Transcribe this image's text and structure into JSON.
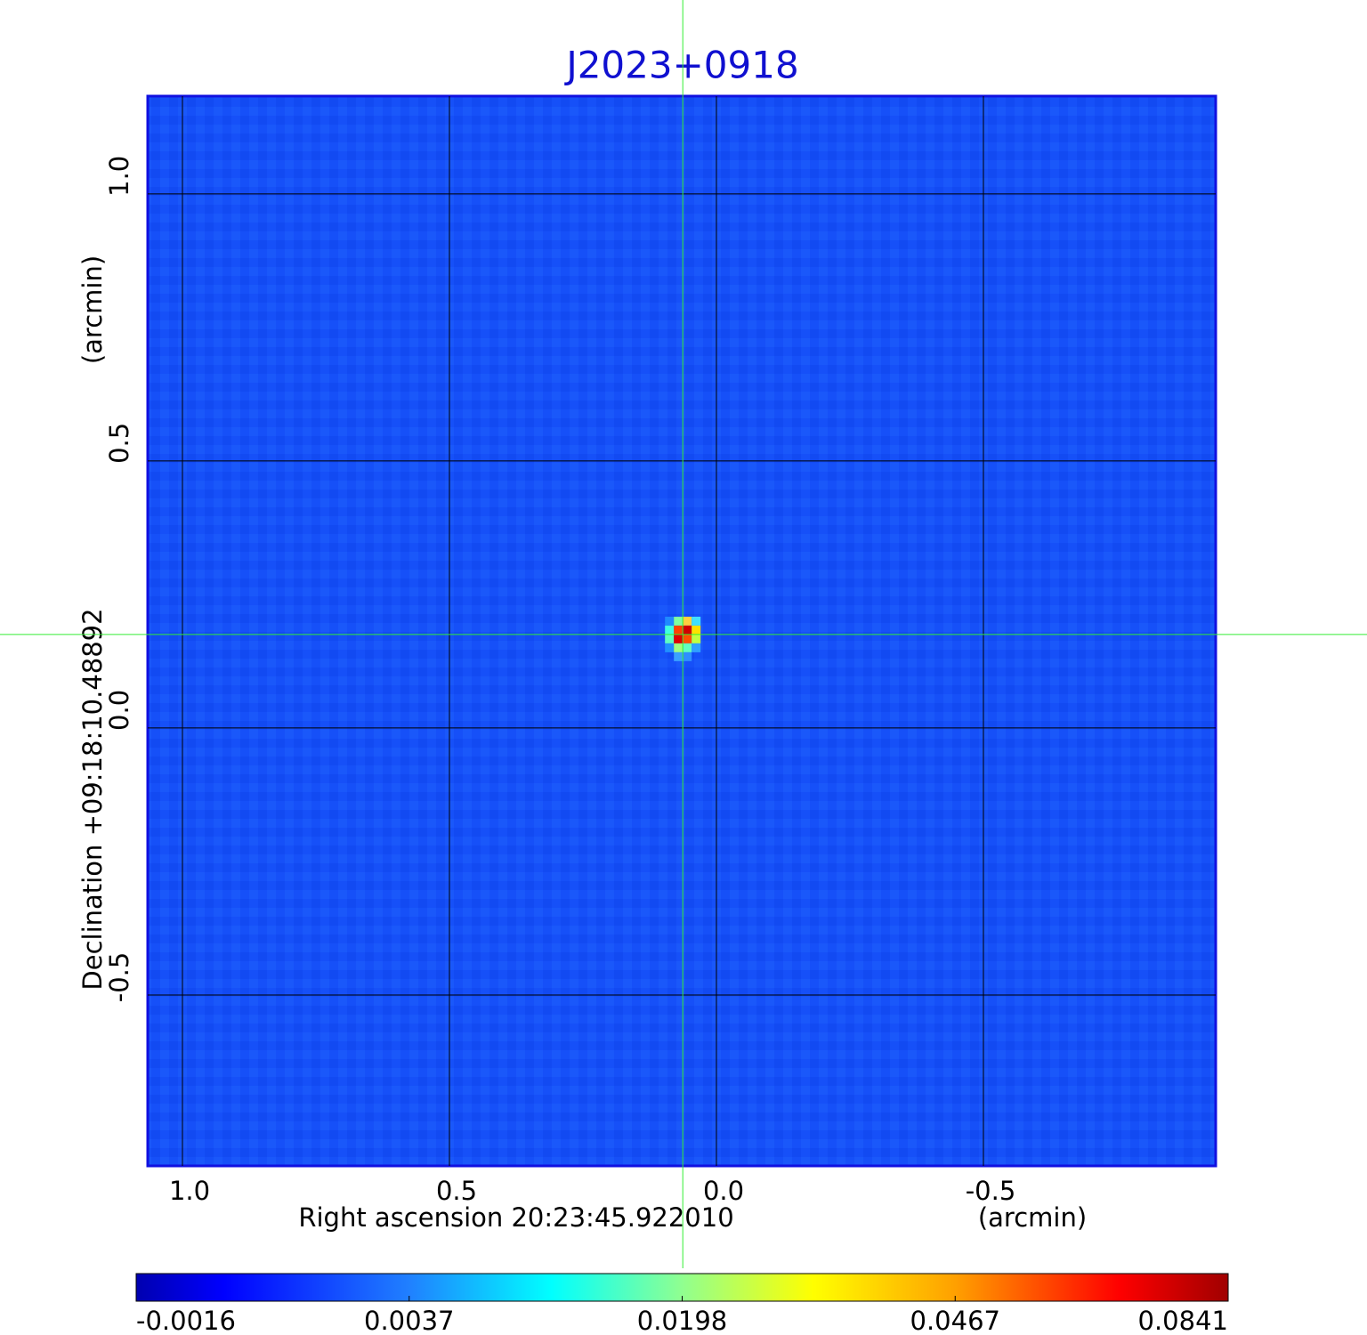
{
  "chart_data": {
    "type": "image",
    "title": "J2023+0918",
    "xlabel": "Right ascension  20:23:45.922010",
    "xunit": "(arcmin)",
    "ylabel": "Declination  +09:18:10.48892",
    "yunit": "(arcmin)",
    "xlim": [
      1.065,
      -0.935
    ],
    "ylim": [
      -0.82,
      1.183
    ],
    "xticks": [
      {
        "value": 1.0,
        "label": "1.0"
      },
      {
        "value": 0.5,
        "label": "0.5"
      },
      {
        "value": 0.0,
        "label": "0.0"
      },
      {
        "value": -0.5,
        "label": "-0.5"
      }
    ],
    "yticks": [
      {
        "value": -0.5,
        "label": "-0.5"
      },
      {
        "value": 0.0,
        "label": "0.0"
      },
      {
        "value": 0.5,
        "label": "0.5"
      },
      {
        "value": 1.0,
        "label": "1.0"
      }
    ],
    "grid": true,
    "crosshair": {
      "x": 0.063,
      "y": 0.175
    },
    "colorbar": {
      "ticks": [
        -0.0016,
        0.0037,
        0.0198,
        0.0467,
        0.0841
      ]
    }
  }
}
